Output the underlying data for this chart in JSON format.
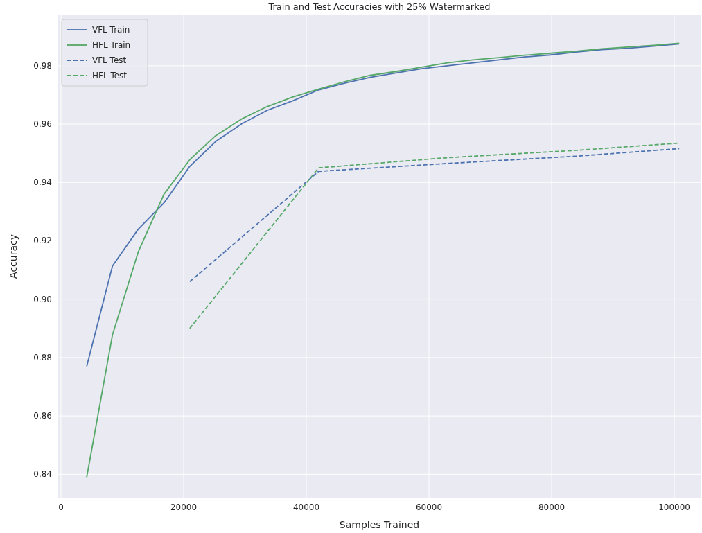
{
  "chart_data": {
    "type": "line",
    "title": "Train and Test Accuracies with 25% Watermarked",
    "xlabel": "Samples Trained",
    "ylabel": "Accuracy",
    "xlim": [
      -560,
      104400
    ],
    "ylim": [
      0.832,
      0.9973
    ],
    "xticks": [
      0,
      20000,
      40000,
      60000,
      80000,
      100000
    ],
    "yticks": [
      {
        "value": 0.84,
        "label": "0.84"
      },
      {
        "value": 0.86,
        "label": "0.86"
      },
      {
        "value": 0.88,
        "label": "0.88"
      },
      {
        "value": 0.9,
        "label": "0.90"
      },
      {
        "value": 0.92,
        "label": "0.92"
      },
      {
        "value": 0.94,
        "label": "0.94"
      },
      {
        "value": 0.96,
        "label": "0.96"
      },
      {
        "value": 0.98,
        "label": "0.98"
      }
    ],
    "grid": true,
    "legend": "top left",
    "marker": "none",
    "series": [
      {
        "name": "VFL Train",
        "color": "#4c72b0",
        "line_style": "solid",
        "x": [
          4200,
          8400,
          12600,
          16800,
          21000,
          25200,
          29400,
          33600,
          37800,
          42000,
          46200,
          50400,
          54600,
          58800,
          63000,
          67200,
          71400,
          75600,
          79800,
          84000,
          88200,
          92400,
          96600,
          100800
        ],
        "values": [
          0.877,
          0.9114,
          0.924,
          0.933,
          0.9455,
          0.954,
          0.96,
          0.9647,
          0.968,
          0.9717,
          0.974,
          0.976,
          0.9775,
          0.979,
          0.98,
          0.981,
          0.982,
          0.983,
          0.9837,
          0.9847,
          0.9855,
          0.986,
          0.9867,
          0.9875
        ]
      },
      {
        "name": "HFL Train",
        "color": "#55a868",
        "line_style": "solid",
        "x": [
          4200,
          8400,
          12600,
          16800,
          21000,
          25200,
          29400,
          33600,
          37800,
          42000,
          46200,
          50400,
          54600,
          58800,
          63000,
          67200,
          71400,
          75600,
          79800,
          84000,
          88200,
          92400,
          96600,
          100800
        ],
        "values": [
          0.839,
          0.8878,
          0.9162,
          0.936,
          0.9478,
          0.956,
          0.9617,
          0.966,
          0.9693,
          0.972,
          0.9745,
          0.9767,
          0.978,
          0.9795,
          0.981,
          0.982,
          0.9828,
          0.9836,
          0.9843,
          0.985,
          0.9858,
          0.9864,
          0.987,
          0.9877
        ]
      },
      {
        "name": "VFL Test",
        "color": "#4c72b0",
        "line_style": "dashed",
        "x": [
          21000,
          42000,
          63000,
          84000,
          100800
        ],
        "values": [
          0.906,
          0.9438,
          0.9465,
          0.949,
          0.9516
        ]
      },
      {
        "name": "HFL Test",
        "color": "#55a868",
        "line_style": "dashed",
        "x": [
          21000,
          42000,
          63000,
          84000,
          100800
        ],
        "values": [
          0.89,
          0.945,
          0.9485,
          0.951,
          0.9535
        ]
      }
    ]
  }
}
